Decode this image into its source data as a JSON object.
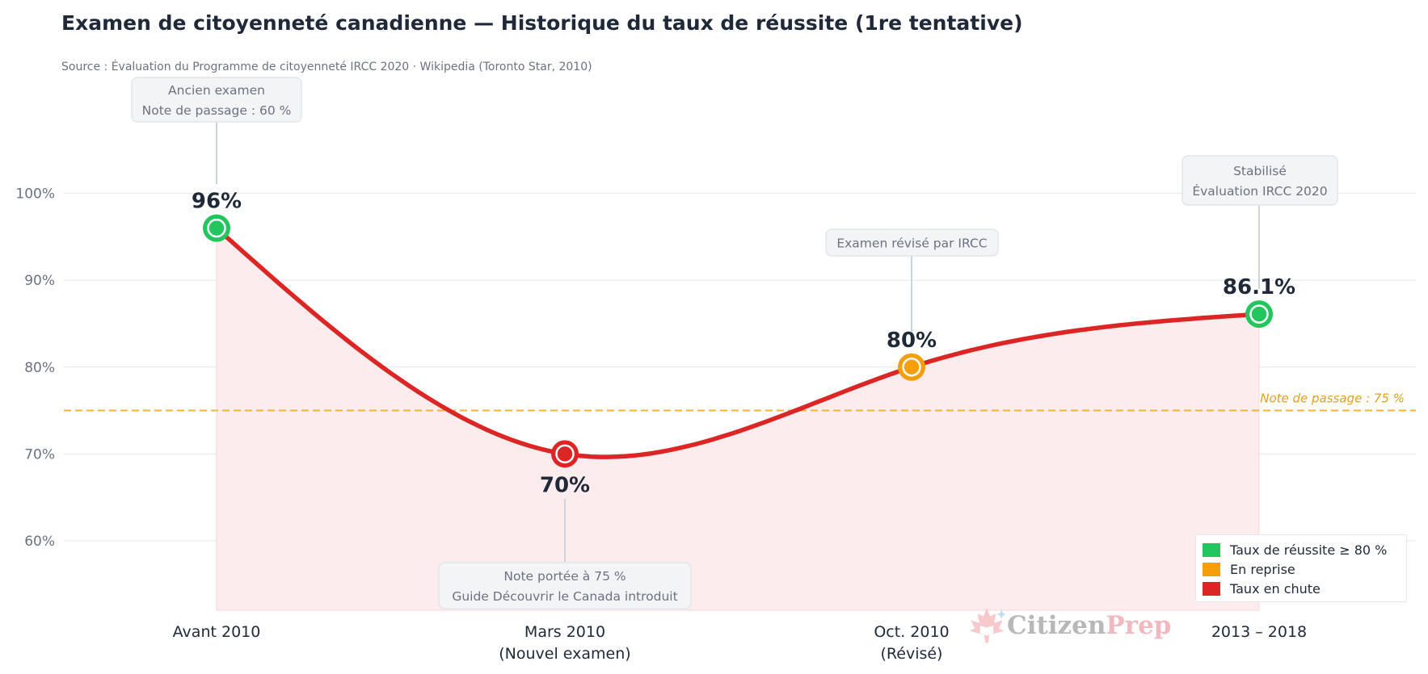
{
  "chart_data": {
    "type": "line",
    "title": "Examen de citoyenneté canadienne — Historique du taux de réussite (1re tentative)",
    "subtitle": "Source : Évaluation du Programme de citoyenneté IRCC 2020 · Wikipedia (Toronto Star, 2010)",
    "categories": [
      [
        "Avant 2010"
      ],
      [
        "Mars 2010",
        "(Nouvel examen)"
      ],
      [
        "Oct. 2010",
        "(Révisé)"
      ],
      [
        "2013 – 2018"
      ]
    ],
    "values": [
      96,
      70,
      80,
      86.1
    ],
    "data_labels": [
      "96%",
      "70%",
      "80%",
      "86.1%"
    ],
    "point_status": [
      "high",
      "drop",
      "recovery",
      "high"
    ],
    "ylim": [
      52,
      110
    ],
    "yticks": [
      60,
      70,
      80,
      90,
      100
    ],
    "ytick_labels": [
      "60%",
      "70%",
      "80%",
      "90%",
      "100%"
    ],
    "grid": true,
    "line_color": "#dc2626",
    "fill_color": "#fdecee",
    "reference_line": {
      "value": 75,
      "label": "Note de passage : 75 %",
      "color": "#f5b335"
    },
    "annotations": [
      {
        "point": 0,
        "lines": [
          "Ancien examen",
          "Note de passage : 60 %"
        ]
      },
      {
        "point": 1,
        "lines": [
          "Note portée à 75 %",
          "Guide Découvrir le Canada introduit"
        ]
      },
      {
        "point": 2,
        "lines": [
          "Examen révisé par IRCC"
        ]
      },
      {
        "point": 3,
        "lines": [
          "Stabilisé",
          "Évaluation IRCC 2020"
        ]
      }
    ],
    "legend": {
      "placement": "bottom-right",
      "items": [
        {
          "label": "Taux de réussite ≥ 80 %",
          "color": "#22c55e"
        },
        {
          "label": "En reprise",
          "color": "#f59e0b"
        },
        {
          "label": "Taux en chute",
          "color": "#dc2626"
        }
      ]
    }
  },
  "colors": {
    "high": "#22c55e",
    "recovery": "#f59e0b",
    "drop": "#dc2626"
  },
  "watermark": {
    "part1": "Citizen",
    "part2": "Prep",
    "icon": "maple-leaf-book-icon"
  }
}
